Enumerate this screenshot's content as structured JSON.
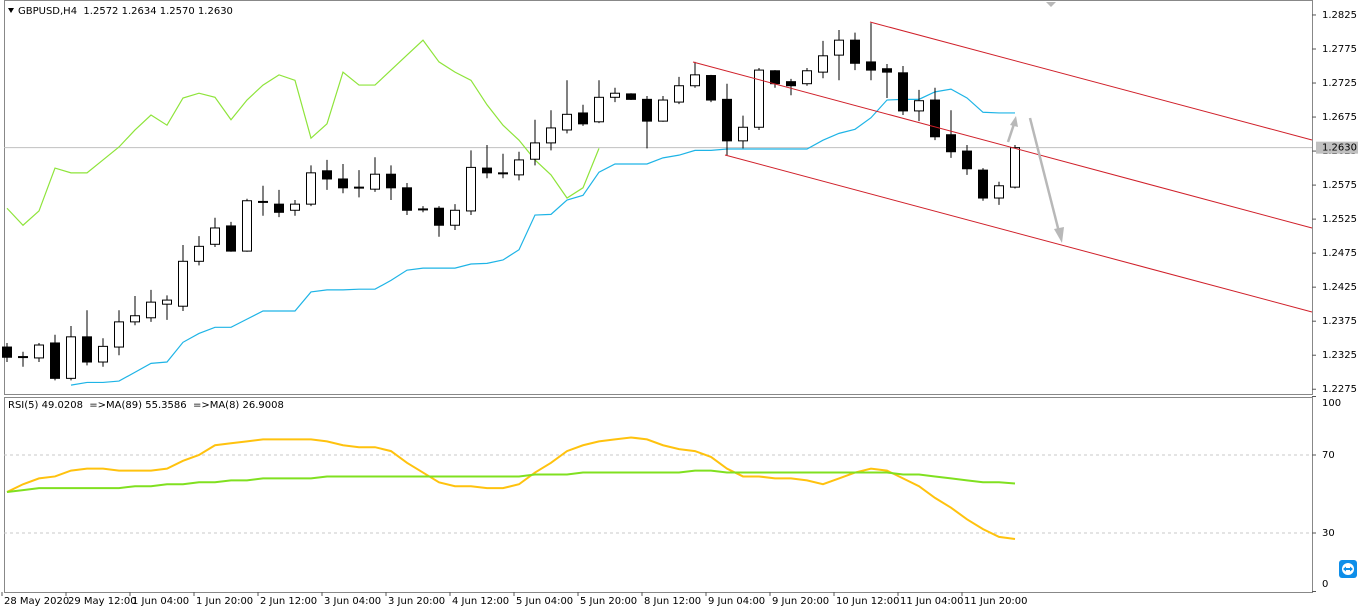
{
  "chart_data": [
    {
      "type": "candlestick",
      "title": "GBPUSD,H4  1.2572 1.2634 1.2570 1.2630",
      "categories": [
        "28 May 2020",
        null,
        null,
        null,
        "29 May 12:00",
        null,
        null,
        null,
        "1 Jun 04:00",
        null,
        null,
        null,
        "1 Jun 20:00",
        null,
        null,
        null,
        "2 Jun 12:00",
        null,
        null,
        null,
        "3 Jun 04:00",
        null,
        null,
        null,
        "3 Jun 20:00",
        null,
        null,
        null,
        "4 Jun 12:00",
        null,
        null,
        null,
        "5 Jun 04:00",
        null,
        null,
        null,
        "5 Jun 20:00",
        null,
        null,
        null,
        "8 Jun 12:00",
        null,
        null,
        null,
        "9 Jun 04:00",
        null,
        null,
        null,
        "9 Jun 20:00",
        null,
        null,
        null,
        "10 Jun 12:00",
        null,
        null,
        null,
        "11 Jun 04:00",
        null,
        null,
        null,
        "11 Jun 20:00",
        null,
        null,
        null
      ],
      "open": [
        1.2337,
        1.2323,
        1.2321,
        1.2343,
        1.2291,
        1.2352,
        1.2315,
        1.2337,
        1.2374,
        1.238,
        1.24,
        1.2397,
        1.2463,
        1.2488,
        1.2515,
        1.2478,
        1.255,
        1.2547,
        1.2538,
        1.2547,
        1.2596,
        1.2584,
        1.2572,
        1.2569,
        1.2591,
        1.2571,
        1.254,
        1.2541,
        1.2516,
        1.2537,
        1.26,
        1.2593,
        1.259,
        1.2613,
        1.2637,
        1.2656,
        1.2681,
        1.2668,
        1.2704,
        1.2709,
        1.2701,
        1.2669,
        1.2697,
        1.2721,
        1.2736,
        1.2701,
        1.264,
        1.266,
        1.2743,
        1.2727,
        1.2724,
        1.2741,
        1.2766,
        1.2788,
        1.2756,
        1.2746,
        1.274,
        1.2684,
        1.27,
        1.2649,
        1.2625,
        1.2597,
        1.2556,
        1.2572
      ],
      "high": [
        1.2343,
        1.233,
        1.2343,
        1.2355,
        1.2368,
        1.2391,
        1.235,
        1.2391,
        1.2412,
        1.2421,
        1.2413,
        1.2487,
        1.25,
        1.2527,
        1.2521,
        1.2555,
        1.2574,
        1.2568,
        1.2553,
        1.2604,
        1.2612,
        1.2606,
        1.2597,
        1.2616,
        1.2604,
        1.2578,
        1.2544,
        1.2544,
        1.2547,
        1.2626,
        1.2634,
        1.2621,
        1.2624,
        1.2671,
        1.2685,
        1.2729,
        1.2693,
        1.2729,
        1.2718,
        1.271,
        1.2706,
        1.2706,
        1.2734,
        1.2756,
        1.2737,
        1.2724,
        1.2677,
        1.2747,
        1.2744,
        1.2731,
        1.2747,
        1.2787,
        1.2803,
        1.2799,
        1.2813,
        1.2753,
        1.275,
        1.2715,
        1.2718,
        1.2685,
        1.2634,
        1.26,
        1.258,
        1.2634
      ],
      "low": [
        1.2315,
        1.2308,
        1.2315,
        1.2288,
        1.2288,
        1.231,
        1.2308,
        1.2325,
        1.2369,
        1.2374,
        1.2377,
        1.239,
        1.2457,
        1.2484,
        1.2477,
        1.2477,
        1.253,
        1.2528,
        1.253,
        1.2544,
        1.2568,
        1.2563,
        1.2557,
        1.2565,
        1.2553,
        1.2531,
        1.2535,
        1.2499,
        1.2509,
        1.2531,
        1.2585,
        1.2585,
        1.2582,
        1.2604,
        1.2626,
        1.2651,
        1.2662,
        1.2666,
        1.2697,
        1.27,
        1.2629,
        1.2668,
        1.2694,
        1.2718,
        1.2697,
        1.2619,
        1.2629,
        1.2656,
        1.2718,
        1.2707,
        1.2721,
        1.2732,
        1.2729,
        1.2744,
        1.2729,
        1.2703,
        1.2678,
        1.2669,
        1.2641,
        1.2615,
        1.259,
        1.2552,
        1.2546,
        1.257
      ],
      "close": [
        1.2322,
        1.2322,
        1.234,
        1.2291,
        1.2352,
        1.2315,
        1.2338,
        1.2374,
        1.2383,
        1.2403,
        1.2406,
        1.2463,
        1.2485,
        1.2512,
        1.2478,
        1.2552,
        1.2551,
        1.2535,
        1.2547,
        1.2593,
        1.2584,
        1.2571,
        1.2571,
        1.2591,
        1.2571,
        1.2538,
        1.2539,
        1.2516,
        1.2538,
        1.2601,
        1.2593,
        1.2592,
        1.2612,
        1.2637,
        1.2659,
        1.2679,
        1.2665,
        1.2704,
        1.271,
        1.2701,
        1.2669,
        1.27,
        1.2721,
        1.2737,
        1.27,
        1.264,
        1.266,
        1.2744,
        1.2724,
        1.2721,
        1.2743,
        1.2765,
        1.2788,
        1.2754,
        1.2744,
        1.2741,
        1.2684,
        1.2699,
        1.2646,
        1.2624,
        1.2599,
        1.2556,
        1.2574,
        1.263
      ],
      "up_color": "#ffffff",
      "down_color": "#000000",
      "series": [
        {
          "color": "#1eb4e6",
          "values": [
            null,
            null,
            null,
            null,
            1.2281,
            1.2285,
            1.2285,
            1.2287,
            1.23,
            1.2313,
            1.2315,
            1.2344,
            1.2357,
            1.2366,
            1.2366,
            1.2378,
            1.239,
            1.239,
            1.239,
            1.2418,
            1.2421,
            1.2421,
            1.2422,
            1.2422,
            1.2435,
            1.245,
            1.2453,
            1.2453,
            1.2453,
            1.2459,
            1.246,
            1.2465,
            1.248,
            1.2531,
            1.2532,
            1.2553,
            1.256,
            1.2594,
            1.2606,
            1.2606,
            1.2606,
            1.2615,
            1.2619,
            1.2626,
            1.2626,
            1.2628,
            1.2628,
            1.2628,
            1.2628,
            1.2628,
            1.2628,
            1.2641,
            1.2651,
            1.2657,
            1.2674,
            1.27,
            1.2701,
            1.2701,
            1.2712,
            1.2716,
            1.2703,
            1.2682,
            1.2681,
            1.2681
          ]
        },
        {
          "color": "#8ee43a",
          "values": [
            1.2541,
            1.2516,
            1.2537,
            1.26,
            1.2593,
            1.2593,
            1.2612,
            1.2631,
            1.2656,
            1.2678,
            1.2663,
            1.2703,
            1.271,
            1.2704,
            1.2671,
            1.27,
            1.2722,
            1.2737,
            1.2729,
            1.2644,
            1.2665,
            1.2741,
            1.2722,
            1.2722,
            1.2744,
            1.2766,
            1.2788,
            1.2756,
            1.2741,
            1.2729,
            1.2693,
            1.2663,
            1.2641,
            1.2612,
            1.259,
            1.2556,
            1.2571,
            1.2629,
            null,
            null,
            null,
            null,
            null,
            null,
            null,
            null,
            null,
            null,
            null,
            null,
            null,
            null,
            null,
            null,
            null,
            null,
            null,
            null,
            null,
            null,
            null,
            null,
            null,
            null
          ]
        }
      ],
      "last_price": {
        "value": 1.263,
        "label": "1.2630"
      },
      "ylim": [
        1.2268,
        1.2847
      ],
      "yticks": [
        1.2825,
        1.2775,
        1.2725,
        1.2675,
        1.2625,
        1.2575,
        1.2525,
        1.2475,
        1.2425,
        1.2375,
        1.2325,
        1.2275
      ]
    },
    {
      "type": "line",
      "title": "RSI(5) 49.0208  =>MA(89) 55.3586  =>MA(8) 26.9008",
      "series": [
        {
          "color": "#ffc20e",
          "values": [
            51,
            55,
            58,
            59,
            62,
            63,
            63,
            62,
            62,
            62,
            63,
            67,
            70,
            75,
            76,
            77,
            78,
            78,
            78,
            78,
            77,
            75,
            74,
            74,
            72,
            66,
            61,
            56,
            54,
            54,
            53,
            53,
            55,
            61,
            66,
            72,
            75,
            77,
            78,
            79,
            78,
            75,
            73,
            72,
            69,
            63,
            59,
            59,
            58,
            58,
            57,
            55,
            58,
            61,
            63,
            62,
            58,
            54,
            48,
            43,
            37,
            32,
            28,
            26.9
          ]
        },
        {
          "color": "#80e020",
          "values": [
            51,
            52,
            53,
            53,
            53,
            53,
            53,
            53,
            54,
            54,
            55,
            55,
            56,
            56,
            57,
            57,
            58,
            58,
            58,
            58,
            59,
            59,
            59,
            59,
            59,
            59,
            59,
            59,
            59,
            59,
            59,
            59,
            59,
            60,
            60,
            60,
            61,
            61,
            61,
            61,
            61,
            61,
            61,
            62,
            62,
            61,
            61,
            61,
            61,
            61,
            61,
            61,
            61,
            61,
            61,
            61,
            60,
            60,
            59,
            58,
            57,
            56,
            56,
            55.4
          ]
        }
      ],
      "ylim": [
        0,
        100
      ],
      "yticks": [
        100,
        70,
        30,
        0
      ]
    }
  ]
}
